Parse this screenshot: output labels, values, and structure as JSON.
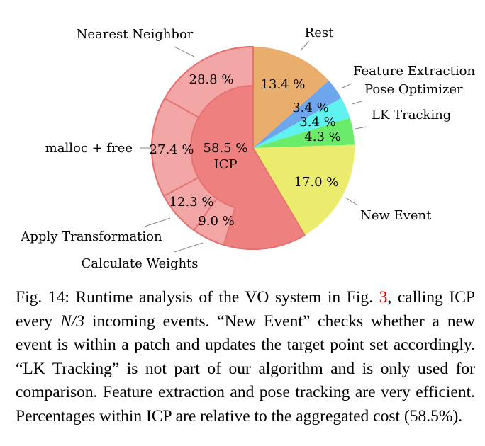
{
  "chart_data": {
    "type": "pie",
    "title": "",
    "outer_slices": [
      {
        "label": "Rest",
        "value": 13.4,
        "value_label": "13.4 %",
        "color": "#e9ad6c"
      },
      {
        "label": "Feature Extraction",
        "value": 3.4,
        "value_label": "3.4 %",
        "color": "#6ea6ee"
      },
      {
        "label": "Pose Optimizer",
        "value": 3.4,
        "value_label": "3.4 %",
        "color": "#5ff2ee"
      },
      {
        "label": "LK Tracking",
        "value": 4.3,
        "value_label": "4.3 %",
        "color": "#6aec6a"
      },
      {
        "label": "New Event",
        "value": 17.0,
        "value_label": "17.0 %",
        "color": "#ebeb6e"
      },
      {
        "label": "ICP",
        "value": 58.5,
        "value_label": "58.5 %",
        "color": "#ee8080"
      }
    ],
    "icp_breakdown": [
      {
        "label": "Calculate Weights",
        "value": 9.0,
        "value_label": "9.0 %",
        "color": "#f3a6a6"
      },
      {
        "label": "Apply Transformation",
        "value": 12.3,
        "value_label": "12.3 %",
        "color": "#f3a6a6"
      },
      {
        "label": "malloc + free",
        "value": 27.4,
        "value_label": "27.4 %",
        "color": "#f3a6a6"
      },
      {
        "label": "Nearest Neighbor",
        "value": 28.8,
        "value_label": "28.8 %",
        "color": "#f3a6a6"
      }
    ],
    "center_label": "ICP",
    "center_value_label": "58.5 %"
  },
  "caption": {
    "prefix": "Fig. 14: Runtime analysis of the VO system in Fig.",
    "fig_ref": "3",
    "part2": ", calling ICP every",
    "math": "N/3",
    "part3": "incoming events. “New Event” checks whether a new event is within a patch and updates the target point set accordingly. “LK Tracking” is not part of our algorithm and is only used for comparison. Feature extraction and pose tracking are very efficient. Percentages within ICP are relative to the aggregated cost (58.5%)."
  }
}
